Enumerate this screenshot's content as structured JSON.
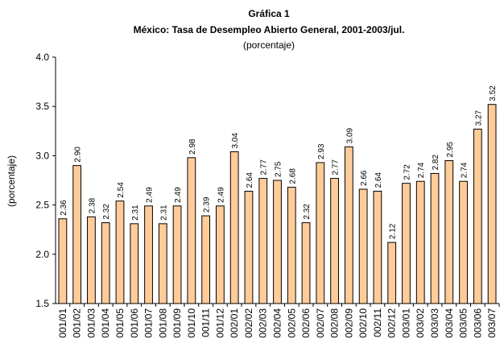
{
  "chart_data": {
    "type": "bar",
    "title": "Gráfica 1",
    "subtitle": "México: Tasa de Desempleo Abierto General, 2001-2003/jul.",
    "unit_label": "(porcentaje)",
    "ylabel": "(porcentaje)",
    "xlabel": "",
    "ylim": [
      1.5,
      4.0
    ],
    "yticks": [
      "1.5",
      "2.0",
      "2.5",
      "3.0",
      "3.5",
      "4.0"
    ],
    "grid": false,
    "bar_color": "#FFCC99",
    "bar_edge_color": "#000000",
    "categories": [
      "001/01",
      "001/02",
      "001/03",
      "001/04",
      "001/05",
      "001/06",
      "001/07",
      "001/08",
      "001/09",
      "001/10",
      "001/11",
      "001/12",
      "002/01",
      "002/02",
      "002/03",
      "002/04",
      "002/05",
      "002/06",
      "002/07",
      "002/08",
      "002/09",
      "002/10",
      "002/11",
      "002/12",
      "003/01",
      "003/02",
      "003/03",
      "003/04",
      "003/05",
      "003/06",
      "003/07"
    ],
    "values": [
      2.36,
      2.9,
      2.38,
      2.32,
      2.54,
      2.31,
      2.49,
      2.31,
      2.49,
      2.98,
      2.39,
      2.49,
      3.04,
      2.64,
      2.77,
      2.75,
      2.68,
      2.32,
      2.93,
      2.77,
      3.09,
      2.66,
      2.64,
      2.12,
      2.72,
      2.74,
      2.82,
      2.95,
      2.74,
      3.27,
      3.52
    ],
    "value_labels": [
      "2.36",
      "2.90",
      "2.38",
      "2.32",
      "2.54",
      "2.31",
      "2.49",
      "2.31",
      "2.49",
      "2.98",
      "2.39",
      "2.49",
      "3.04",
      "2.64",
      "2.77",
      "2.75",
      "2.68",
      "2.32",
      "2.93",
      "2.77",
      "3.09",
      "2.66",
      "2.64",
      "2.12",
      "2.72",
      "2.74",
      "2.82",
      "2.95",
      "2.74",
      "3.27",
      "3.52"
    ]
  }
}
